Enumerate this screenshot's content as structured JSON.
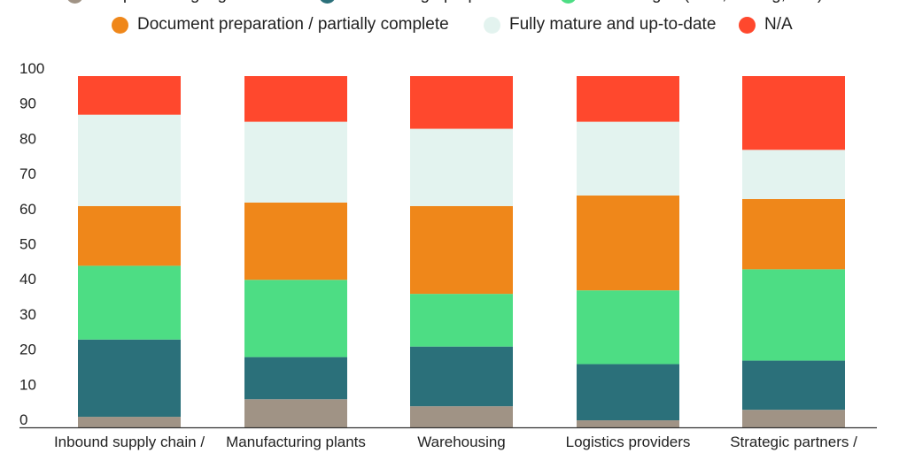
{
  "chart_data": {
    "type": "bar",
    "stacked": true,
    "categories": [
      "Inbound supply chain /",
      "Manufacturing plants",
      "Warehousing",
      "Logistics providers",
      "Strategic partners /"
    ],
    "series": [
      {
        "name": "Not prioritising digitalisation",
        "color": "#a09385",
        "values": [
          3,
          8,
          6,
          2,
          5
        ]
      },
      {
        "name": "Resourcing / preparation",
        "color": "#2b707a",
        "values": [
          22,
          12,
          17,
          16,
          14
        ]
      },
      {
        "name": "Initial stages (Pilot, testing, etc.)",
        "color": "#4ddd84",
        "values": [
          21,
          22,
          15,
          21,
          26
        ]
      },
      {
        "name": "Document preparation / partially complete",
        "color": "#ef871a",
        "values": [
          17,
          22,
          25,
          27,
          20
        ]
      },
      {
        "name": "Fully mature and up-to-date",
        "color": "#e3f3ef",
        "values": [
          26,
          23,
          22,
          21,
          14
        ]
      },
      {
        "name": "N/A",
        "color": "#ff482d",
        "values": [
          11,
          13,
          15,
          13,
          21
        ]
      }
    ],
    "ylim": [
      0,
      100
    ],
    "yticks": [
      "0",
      "10",
      "20",
      "30",
      "40",
      "50",
      "60",
      "70",
      "80",
      "90",
      "100"
    ],
    "grid": false,
    "legend": "top",
    "title": "",
    "xlabel": "",
    "ylabel": ""
  }
}
